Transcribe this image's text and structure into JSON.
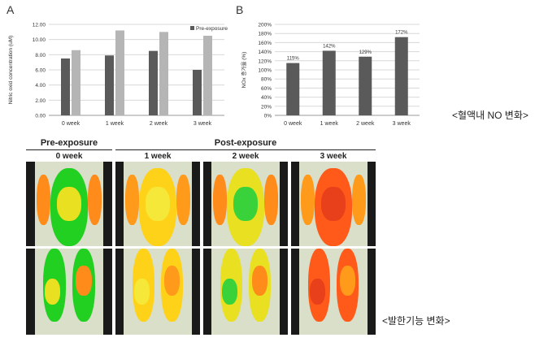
{
  "panels": {
    "a": "A",
    "b": "B"
  },
  "chart_data": [
    {
      "type": "bar",
      "categories": [
        "0 week",
        "1 week",
        "2 week",
        "3 week"
      ],
      "series": [
        {
          "name": "Pre-exposure",
          "values": [
            7.5,
            7.9,
            8.5,
            6.0
          ],
          "color": "#5a5a5a"
        },
        {
          "name": "",
          "values": [
            8.6,
            11.2,
            11.0,
            10.5
          ],
          "color": "#b5b5b5"
        }
      ],
      "ylabel": "Nitric oxid concentration (uM)",
      "ylim": [
        0,
        12
      ],
      "yticks": [
        "0.00",
        "2.00",
        "4.00",
        "6.00",
        "8.00",
        "10.00",
        "12.00"
      ],
      "legend": "top-right",
      "grid": true
    },
    {
      "type": "bar",
      "categories": [
        "0 week",
        "1 week",
        "2 week",
        "3 week"
      ],
      "values": [
        115,
        142,
        129,
        172
      ],
      "data_labels": [
        "115%",
        "142%",
        "129%",
        "172%"
      ],
      "color": "#5a5a5a",
      "ylabel": "NOx 증가율 (%)",
      "ylim": [
        0,
        200
      ],
      "yticks": [
        "0%",
        "20%",
        "40%",
        "60%",
        "80%",
        "100%",
        "120%",
        "140%",
        "160%",
        "180%",
        "200%"
      ],
      "grid": true
    }
  ],
  "captions": {
    "blood_no": "<혈액내 NO 변화>",
    "sweat": "<발한기능 변화>"
  },
  "thermo": {
    "pre_header": "Pre-exposure",
    "post_header": "Post-exposure",
    "weeks": [
      "0 week",
      "1 week",
      "2 week",
      "3 week"
    ]
  }
}
